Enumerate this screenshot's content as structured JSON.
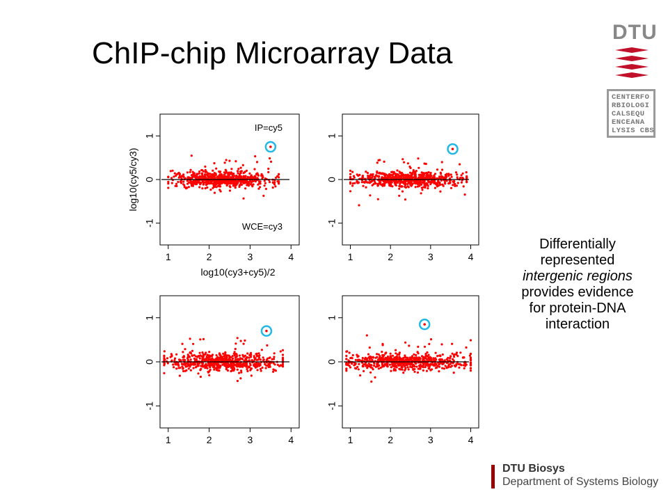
{
  "slide": {
    "title": "ChIP-chip Microarray Data",
    "annotation": {
      "line1": "Differentially",
      "line2": "represented",
      "line3_italic": "intergenic regions",
      "line4": "provides evidence",
      "line5": "for protein-DNA",
      "line6": "interaction"
    },
    "footer": {
      "org": "DTU Biosys",
      "dept": "Department of Systems Biology"
    },
    "logos": {
      "dtu_text": "DTU",
      "cbs_lines": [
        "CENTERFO",
        "RBIOLOGI",
        "CALSEQU",
        "ENCEANA",
        "LYSIS CBS"
      ]
    },
    "colors": {
      "points": "#ff0000",
      "highlight_ring": "#22b8e6",
      "footer_accent": "#990000"
    }
  },
  "chart_data": [
    {
      "type": "scatter",
      "panel": "top-left",
      "title": "",
      "xlabel": "log10(cy3+cy5)/2",
      "ylabel": "log10(cy5/cy3)",
      "annotations": [
        "IP=cy5",
        "WCE=cy3"
      ],
      "xlim": [
        0.8,
        4.2
      ],
      "ylim": [
        -1.5,
        1.5
      ],
      "x_ticks": [
        "1",
        "2",
        "3",
        "4"
      ],
      "y_ticks": [
        "-1",
        "0",
        "1"
      ],
      "horizontal_line_y": 0,
      "highlighted_point": {
        "x": 3.5,
        "y": 0.75
      },
      "cloud": {
        "x_range": [
          1.0,
          3.7
        ],
        "y_spread": 0.2
      }
    },
    {
      "type": "scatter",
      "panel": "top-right",
      "title": "",
      "xlabel": "",
      "ylabel": "",
      "xlim": [
        0.8,
        4.2
      ],
      "ylim": [
        -1.5,
        1.5
      ],
      "x_ticks": [
        "1",
        "2",
        "3",
        "4"
      ],
      "y_ticks": [
        "-1",
        "0",
        "1"
      ],
      "horizontal_line_y": 0,
      "highlighted_point": {
        "x": 3.55,
        "y": 0.7
      },
      "cloud": {
        "x_range": [
          1.0,
          3.9
        ],
        "y_spread": 0.2
      }
    },
    {
      "type": "scatter",
      "panel": "bottom-left",
      "title": "",
      "xlabel": "",
      "ylabel": "",
      "xlim": [
        0.8,
        4.2
      ],
      "ylim": [
        -1.5,
        1.5
      ],
      "x_ticks": [
        "1",
        "2",
        "3",
        "4"
      ],
      "y_ticks": [
        "-1",
        "0",
        "1"
      ],
      "horizontal_line_y": 0,
      "highlighted_point": {
        "x": 3.4,
        "y": 0.7
      },
      "cloud": {
        "x_range": [
          0.9,
          3.8
        ],
        "y_spread": 0.22
      }
    },
    {
      "type": "scatter",
      "panel": "bottom-right",
      "title": "",
      "xlabel": "",
      "ylabel": "",
      "xlim": [
        0.8,
        4.2
      ],
      "ylim": [
        -1.5,
        1.5
      ],
      "x_ticks": [
        "1",
        "2",
        "3",
        "4"
      ],
      "y_ticks": [
        "-1",
        "0",
        "1"
      ],
      "horizontal_line_y": 0,
      "highlighted_point": {
        "x": 2.85,
        "y": 0.85
      },
      "cloud": {
        "x_range": [
          0.9,
          4.0
        ],
        "y_spread": 0.2
      }
    }
  ]
}
